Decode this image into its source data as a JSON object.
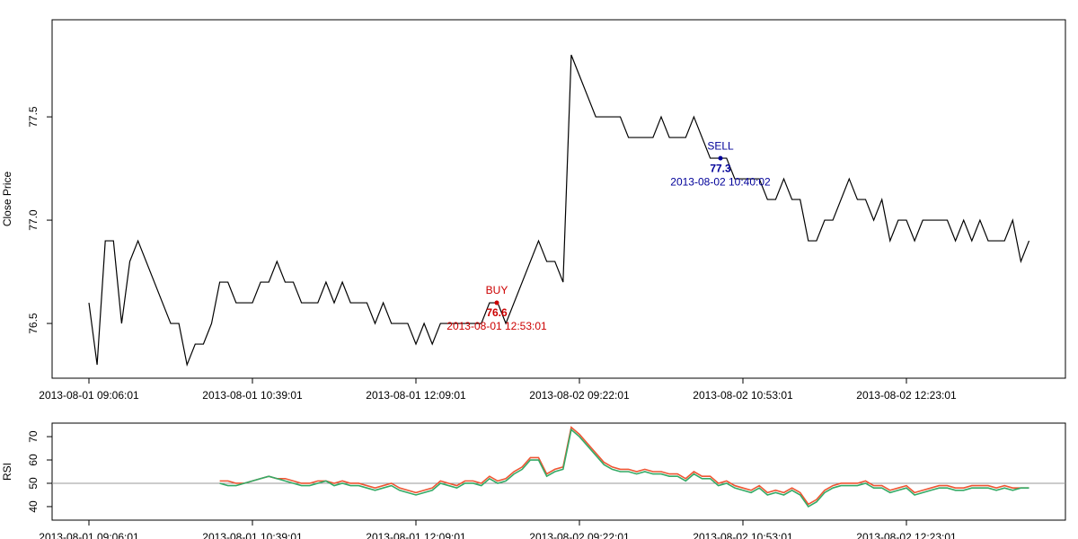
{
  "chart_data": [
    {
      "type": "line",
      "y_label": "Close Price",
      "categories": [
        "2013-08-01 09:06:01",
        null,
        null,
        null,
        null,
        null,
        null,
        null,
        null,
        null,
        null,
        null,
        null,
        null,
        null,
        null,
        null,
        null,
        null,
        null,
        "2013-08-01 10:39:01",
        null,
        null,
        null,
        null,
        null,
        null,
        null,
        null,
        null,
        null,
        null,
        null,
        null,
        null,
        null,
        null,
        null,
        null,
        null,
        "2013-08-01 12:09:01",
        null,
        null,
        null,
        null,
        null,
        null,
        null,
        null,
        null,
        null,
        null,
        null,
        null,
        null,
        null,
        null,
        null,
        null,
        null,
        "2013-08-02 09:22:01",
        null,
        null,
        null,
        null,
        null,
        null,
        null,
        null,
        null,
        null,
        null,
        null,
        null,
        null,
        null,
        null,
        null,
        null,
        null,
        "2013-08-02 10:53:01",
        null,
        null,
        null,
        null,
        null,
        null,
        null,
        null,
        null,
        null,
        null,
        null,
        null,
        null,
        null,
        null,
        null,
        null,
        null,
        "2013-08-02 12:23:01",
        null,
        null,
        null,
        null,
        null,
        null,
        null,
        null,
        null,
        null,
        null,
        null,
        null,
        null,
        null
      ],
      "series": [
        {
          "color": "#000000",
          "values": [
            76.6,
            76.3,
            76.9,
            76.9,
            76.5,
            76.8,
            76.9,
            76.8,
            76.7,
            76.6,
            76.5,
            76.5,
            76.3,
            76.4,
            76.4,
            76.5,
            76.7,
            76.7,
            76.6,
            76.6,
            76.6,
            76.7,
            76.7,
            76.8,
            76.7,
            76.7,
            76.6,
            76.6,
            76.6,
            76.7,
            76.6,
            76.7,
            76.6,
            76.6,
            76.6,
            76.5,
            76.6,
            76.5,
            76.5,
            76.5,
            76.4,
            76.5,
            76.4,
            76.5,
            76.5,
            76.5,
            76.5,
            76.5,
            76.5,
            76.6,
            76.6,
            76.5,
            76.6,
            76.7,
            76.8,
            76.9,
            76.8,
            76.8,
            76.7,
            77.8,
            77.7,
            77.6,
            77.5,
            77.5,
            77.5,
            77.5,
            77.4,
            77.4,
            77.4,
            77.4,
            77.5,
            77.4,
            77.4,
            77.4,
            77.5,
            77.4,
            77.3,
            77.3,
            77.3,
            77.2,
            77.2,
            77.2,
            77.2,
            77.1,
            77.1,
            77.2,
            77.1,
            77.1,
            76.9,
            76.9,
            77.0,
            77.0,
            77.1,
            77.2,
            77.1,
            77.1,
            77.0,
            77.1,
            76.9,
            77.0,
            77.0,
            76.9,
            77.0,
            77.0,
            77.0,
            77.0,
            76.9,
            77.0,
            76.9,
            77.0,
            76.9,
            76.9,
            76.9,
            77.0,
            76.8,
            76.9
          ]
        }
      ],
      "ylim": [
        76.235,
        77.97
      ],
      "yticks": [
        76.5,
        {
          "value": 77,
          "label": "77.0"
        },
        77.5
      ],
      "annotations": [
        {
          "label": "BUY",
          "value": 76.6,
          "time": "2013-08-01 12:53:01",
          "color": "#cc0000"
        },
        {
          "label": "SELL",
          "value": 77.3,
          "time": "2013-08-02 10:40:02",
          "color": "#000099"
        }
      ]
    },
    {
      "type": "line",
      "y_label": "RSI",
      "categories": [
        "2013-08-01 09:06:01",
        null,
        null,
        null,
        null,
        null,
        null,
        null,
        null,
        null,
        null,
        null,
        null,
        null,
        null,
        null,
        null,
        null,
        null,
        null,
        "2013-08-01 10:39:01",
        null,
        null,
        null,
        null,
        null,
        null,
        null,
        null,
        null,
        null,
        null,
        null,
        null,
        null,
        null,
        null,
        null,
        null,
        null,
        "2013-08-01 12:09:01",
        null,
        null,
        null,
        null,
        null,
        null,
        null,
        null,
        null,
        null,
        null,
        null,
        null,
        null,
        null,
        null,
        null,
        null,
        null,
        "2013-08-02 09:22:01",
        null,
        null,
        null,
        null,
        null,
        null,
        null,
        null,
        null,
        null,
        null,
        null,
        null,
        null,
        null,
        null,
        null,
        null,
        null,
        "2013-08-02 10:53:01",
        null,
        null,
        null,
        null,
        null,
        null,
        null,
        null,
        null,
        null,
        null,
        null,
        null,
        null,
        null,
        null,
        null,
        null,
        null,
        "2013-08-02 12:23:01",
        null,
        null,
        null,
        null,
        null,
        null,
        null,
        null,
        null,
        null,
        null,
        null,
        null,
        null,
        null
      ],
      "series": [
        {
          "color": "#ee5533",
          "values": [
            null,
            null,
            null,
            null,
            null,
            null,
            null,
            null,
            null,
            null,
            null,
            null,
            null,
            null,
            null,
            null,
            51,
            51,
            50,
            50,
            51,
            52,
            53,
            52,
            52,
            51,
            50,
            50,
            51,
            51,
            50,
            51,
            50,
            50,
            49,
            48,
            49,
            50,
            48,
            47,
            46,
            47,
            48,
            51,
            50,
            49,
            51,
            51,
            50,
            53,
            51,
            52,
            55,
            57,
            61,
            61,
            54,
            56,
            57,
            74,
            71,
            67,
            63,
            59,
            57,
            56,
            56,
            55,
            56,
            55,
            55,
            54,
            54,
            52,
            55,
            53,
            53,
            50,
            51,
            49,
            48,
            47,
            49,
            46,
            47,
            46,
            48,
            46,
            41,
            43,
            47,
            49,
            50,
            50,
            50,
            51,
            49,
            49,
            47,
            48,
            49,
            46,
            47,
            48,
            49,
            49,
            48,
            48,
            49,
            49,
            49,
            48,
            49,
            48,
            48,
            48
          ]
        },
        {
          "color": "#33aa66",
          "values": [
            null,
            null,
            null,
            null,
            null,
            null,
            null,
            null,
            null,
            null,
            null,
            null,
            null,
            null,
            null,
            null,
            50,
            49,
            49,
            50,
            51,
            52,
            53,
            52,
            51,
            50,
            49,
            49,
            50,
            51,
            49,
            50,
            49,
            49,
            48,
            47,
            48,
            49,
            47,
            46,
            45,
            46,
            47,
            50,
            49,
            48,
            50,
            50,
            49,
            52,
            50,
            51,
            54,
            56,
            60,
            60,
            53,
            55,
            56,
            73,
            70,
            66,
            62,
            58,
            56,
            55,
            55,
            54,
            55,
            54,
            54,
            53,
            53,
            51,
            54,
            52,
            52,
            49,
            50,
            48,
            47,
            46,
            48,
            45,
            46,
            45,
            47,
            45,
            40,
            42,
            46,
            48,
            49,
            49,
            49,
            50,
            48,
            48,
            46,
            47,
            48,
            45,
            46,
            47,
            48,
            48,
            47,
            47,
            48,
            48,
            48,
            47,
            48,
            47,
            48,
            48
          ]
        }
      ],
      "ylim": [
        34.2,
        75.8
      ],
      "yticks": [
        40,
        50,
        60,
        70
      ],
      "reference_line": {
        "value": 50,
        "color": "#999999"
      }
    }
  ]
}
